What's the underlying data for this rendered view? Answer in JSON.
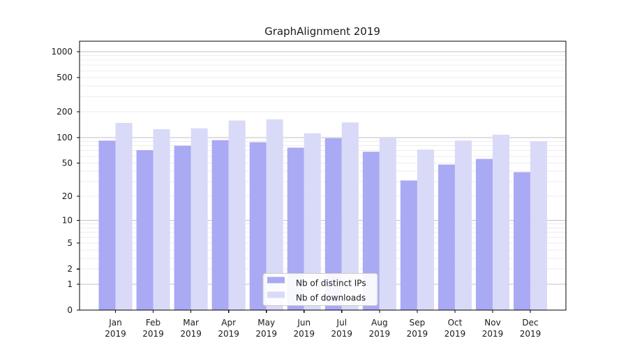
{
  "chart_data": {
    "type": "bar",
    "title": "GraphAlignment 2019",
    "categories": [
      "Jan",
      "Feb",
      "Mar",
      "Apr",
      "May",
      "Jun",
      "Jul",
      "Aug",
      "Sep",
      "Oct",
      "Nov",
      "Dec"
    ],
    "category_year": "2019",
    "series": [
      {
        "name": "Nb of distinct IPs",
        "color": "#a9a9f4",
        "values": [
          92,
          71,
          80,
          93,
          88,
          76,
          98,
          68,
          31,
          48,
          56,
          39
        ]
      },
      {
        "name": "Nb of downloads",
        "color": "#d9d9f8",
        "values": [
          148,
          125,
          128,
          158,
          163,
          112,
          150,
          98,
          72,
          92,
          108,
          90
        ]
      }
    ],
    "yscale": "log1p",
    "ylim": [
      0,
      1325
    ],
    "yticks": [
      0,
      1,
      2,
      5,
      10,
      20,
      50,
      100,
      200,
      500,
      1000
    ],
    "grid": {
      "major_lines": [
        1,
        10,
        100,
        1000
      ],
      "minor_lines": [
        2,
        3,
        4,
        5,
        6,
        7,
        8,
        9,
        20,
        30,
        40,
        50,
        60,
        70,
        80,
        90,
        200,
        300,
        400,
        500,
        600,
        700,
        800,
        900
      ]
    },
    "legend": {
      "position": "lower-center"
    }
  },
  "colors": {
    "major_grid": "#c2c2c2",
    "minor_grid": "#ececec",
    "spine": "#000000",
    "text": "#1a1a1a",
    "legend_border": "#cccccc",
    "legend_bg": "#ffffff"
  }
}
